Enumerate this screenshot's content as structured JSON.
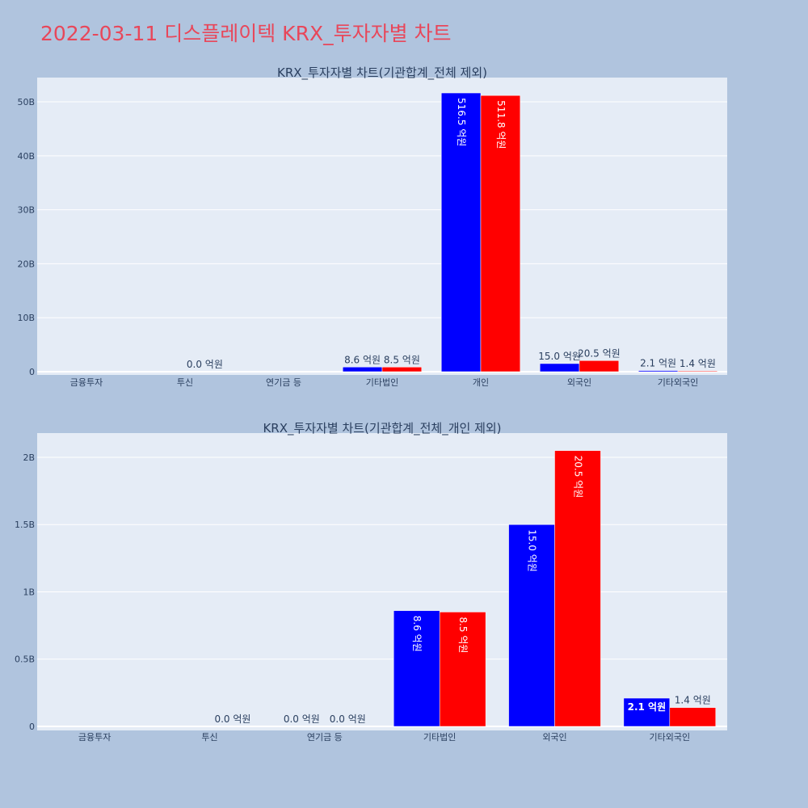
{
  "page": {
    "title": "2022-03-11 디스플레이텍 KRX_투자자별 차트",
    "title_color": "#e8475a",
    "background": "#b0c4de",
    "plot_background": "#e5ecf6"
  },
  "chart_data": [
    {
      "type": "bar",
      "title": "KRX_투자자별 차트(기관합계_전체 제외)",
      "categories": [
        "금융투자",
        "투신",
        "연기금 등",
        "기타법인",
        "개인",
        "외국인",
        "기타외국인"
      ],
      "series": [
        {
          "color": "#0000ff",
          "values": [
            0,
            0,
            0,
            860000000,
            51650000000,
            1500000000,
            210000000
          ],
          "labels": [
            "",
            "",
            "",
            "8.6 억원",
            "516.5 억원",
            "15.0 억원",
            "2.1 억원"
          ]
        },
        {
          "color": "#ff0000",
          "values": [
            0,
            0,
            0,
            850000000,
            51180000000,
            2050000000,
            140000000
          ],
          "labels": [
            "",
            "0.0 억원",
            "",
            "8.5 억원",
            "511.8 억원",
            "20.5 억원",
            "1.4 억원"
          ]
        }
      ],
      "yticks": [
        0,
        10000000000,
        20000000000,
        30000000000,
        40000000000,
        50000000000
      ],
      "ytick_labels": [
        "0",
        "10B",
        "20B",
        "30B",
        "40B",
        "50B"
      ],
      "ylim": [
        0,
        54500000000
      ],
      "grid": true
    },
    {
      "type": "bar",
      "title": "KRX_투자자별 차트(기관합계_전체_개인 제외)",
      "categories": [
        "금융투자",
        "투신",
        "연기금 등",
        "기타법인",
        "외국인",
        "기타외국인"
      ],
      "series": [
        {
          "color": "#0000ff",
          "values": [
            0,
            0,
            0,
            860000000,
            1500000000,
            210000000
          ],
          "labels": [
            "",
            "",
            "0.0 억원",
            "8.6 억원",
            "15.0 억원",
            "2.1 억원"
          ]
        },
        {
          "color": "#ff0000",
          "values": [
            0,
            0,
            0,
            850000000,
            2050000000,
            140000000
          ],
          "labels": [
            "",
            "0.0 억원",
            "0.0 억원",
            "8.5 억원",
            "20.5 억원",
            "1.4 억원"
          ]
        }
      ],
      "yticks": [
        0,
        500000000,
        1000000000,
        1500000000,
        2000000000
      ],
      "ytick_labels": [
        "0",
        "0.5B",
        "1B",
        "1.5B",
        "2B"
      ],
      "ylim": [
        0,
        2180000000
      ],
      "grid": true
    }
  ]
}
